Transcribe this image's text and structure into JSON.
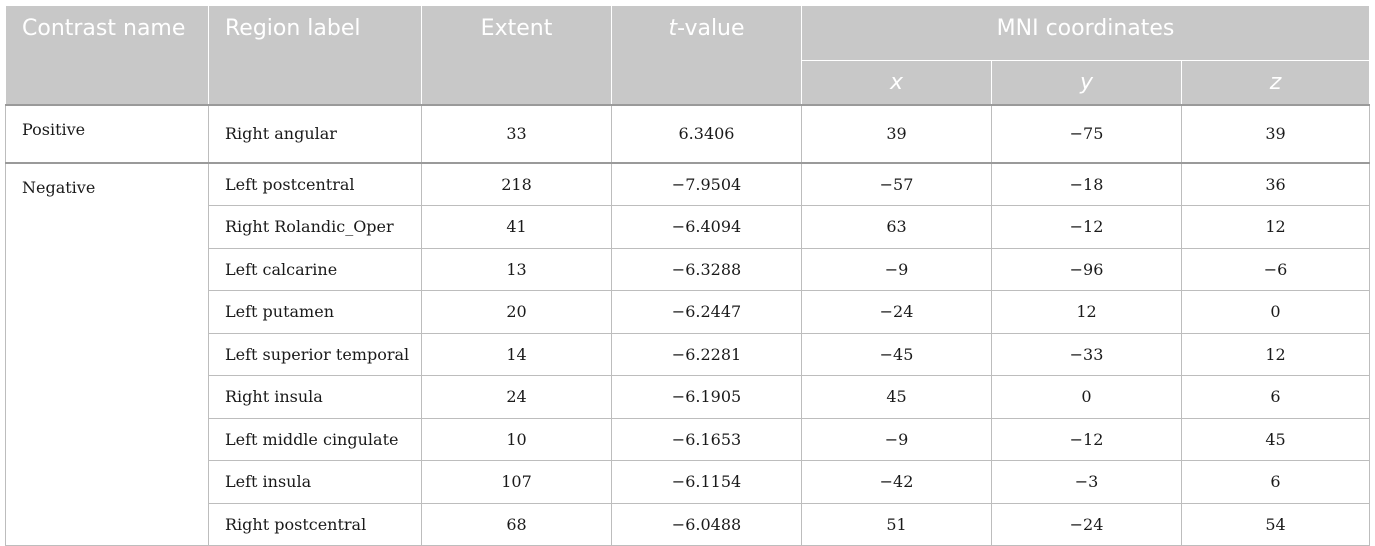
{
  "table": {
    "headers": {
      "contrast_name": "Contrast name",
      "region_label": "Region label",
      "extent": "Extent",
      "t_value_italic": "t",
      "t_value_rest": "-value",
      "mni": "MNI coordinates",
      "x": "x",
      "y": "y",
      "z": "z"
    },
    "groups": [
      {
        "contrast": "Positive",
        "rows": [
          {
            "region": "Right angular",
            "extent": "33",
            "t": "6.3406",
            "x": "39",
            "y": "−75",
            "z": "39"
          }
        ]
      },
      {
        "contrast": "Negative",
        "rows": [
          {
            "region": "Left postcentral",
            "extent": "218",
            "t": "−7.9504",
            "x": "−57",
            "y": "−18",
            "z": "36"
          },
          {
            "region": "Right Rolandic_Oper",
            "extent": "41",
            "t": "−6.4094",
            "x": "63",
            "y": "−12",
            "z": "12"
          },
          {
            "region": "Left calcarine",
            "extent": "13",
            "t": "−6.3288",
            "x": "−9",
            "y": "−96",
            "z": "−6"
          },
          {
            "region": "Left putamen",
            "extent": "20",
            "t": "−6.2447",
            "x": "−24",
            "y": "12",
            "z": "0"
          },
          {
            "region": "Left superior temporal",
            "extent": "14",
            "t": "−6.2281",
            "x": "−45",
            "y": "−33",
            "z": "12"
          },
          {
            "region": "Right insula",
            "extent": "24",
            "t": "−6.1905",
            "x": "45",
            "y": "0",
            "z": "6"
          },
          {
            "region": "Left middle cingulate",
            "extent": "10",
            "t": "−6.1653",
            "x": "−9",
            "y": "−12",
            "z": "45"
          },
          {
            "region": "Left insula",
            "extent": "107",
            "t": "−6.1154",
            "x": "−42",
            "y": "−3",
            "z": "6"
          },
          {
            "region": "Right postcentral",
            "extent": "68",
            "t": "−6.0488",
            "x": "51",
            "y": "−24",
            "z": "54"
          }
        ]
      }
    ]
  },
  "colors": {
    "header_bg": "#c8c8c8",
    "header_text": "#ffffff",
    "grid": "#bdbdbd"
  }
}
